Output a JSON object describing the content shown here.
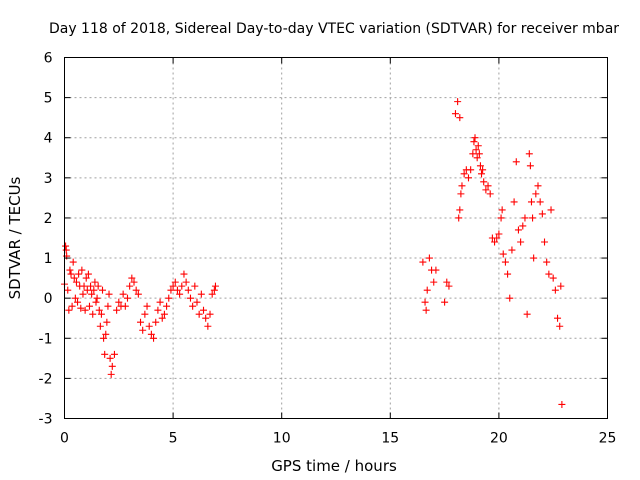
{
  "chart_data": {
    "type": "scatter",
    "title": "Day 118 of 2018, Sidereal Day-to-day VTEC variation (SDTVAR) for receiver mbar",
    "xlabel": "GPS time / hours",
    "ylabel": "SDTVAR / TECUs",
    "xlim": [
      0,
      25
    ],
    "ylim": [
      -3,
      6
    ],
    "xticks": [
      "0",
      "5",
      "10",
      "15",
      "20",
      "25"
    ],
    "yticks": [
      "-3",
      "-2",
      "-1",
      "0",
      "1",
      "2",
      "3",
      "4",
      "5",
      "6"
    ],
    "grid": true,
    "marker": "plus",
    "color": "#ff0000",
    "series": [
      {
        "name": "SDTVAR",
        "points": [
          [
            0.0,
            0.35
          ],
          [
            0.05,
            1.3
          ],
          [
            0.08,
            1.2
          ],
          [
            0.1,
            1.05
          ],
          [
            0.15,
            0.2
          ],
          [
            0.2,
            -0.3
          ],
          [
            0.25,
            0.7
          ],
          [
            0.3,
            0.6
          ],
          [
            0.35,
            -0.2
          ],
          [
            0.4,
            0.9
          ],
          [
            0.45,
            0.5
          ],
          [
            0.5,
            0.0
          ],
          [
            0.55,
            0.4
          ],
          [
            0.6,
            -0.1
          ],
          [
            0.65,
            0.6
          ],
          [
            0.7,
            0.3
          ],
          [
            0.75,
            -0.25
          ],
          [
            0.8,
            0.7
          ],
          [
            0.85,
            0.1
          ],
          [
            0.9,
            0.3
          ],
          [
            0.95,
            -0.3
          ],
          [
            1.0,
            0.5
          ],
          [
            1.05,
            0.2
          ],
          [
            1.1,
            0.6
          ],
          [
            1.15,
            -0.2
          ],
          [
            1.2,
            0.3
          ],
          [
            1.25,
            0.1
          ],
          [
            1.3,
            -0.4
          ],
          [
            1.35,
            0.2
          ],
          [
            1.4,
            0.4
          ],
          [
            1.45,
            -0.1
          ],
          [
            1.5,
            0.0
          ],
          [
            1.55,
            0.3
          ],
          [
            1.6,
            -0.3
          ],
          [
            1.65,
            -0.7
          ],
          [
            1.7,
            -0.4
          ],
          [
            1.75,
            0.2
          ],
          [
            1.8,
            -1.0
          ],
          [
            1.85,
            -1.4
          ],
          [
            1.9,
            -0.9
          ],
          [
            1.95,
            -0.6
          ],
          [
            2.0,
            -0.2
          ],
          [
            2.05,
            0.1
          ],
          [
            2.1,
            -1.5
          ],
          [
            2.15,
            -1.9
          ],
          [
            2.2,
            -1.7
          ],
          [
            2.3,
            -1.4
          ],
          [
            2.4,
            -0.3
          ],
          [
            2.5,
            -0.1
          ],
          [
            2.6,
            -0.2
          ],
          [
            2.7,
            0.1
          ],
          [
            2.8,
            -0.2
          ],
          [
            2.9,
            0.0
          ],
          [
            3.0,
            0.3
          ],
          [
            3.1,
            0.5
          ],
          [
            3.2,
            0.4
          ],
          [
            3.3,
            0.2
          ],
          [
            3.4,
            0.1
          ],
          [
            3.5,
            -0.6
          ],
          [
            3.6,
            -0.8
          ],
          [
            3.7,
            -0.4
          ],
          [
            3.8,
            -0.2
          ],
          [
            3.9,
            -0.7
          ],
          [
            4.0,
            -0.9
          ],
          [
            4.1,
            -1.0
          ],
          [
            4.2,
            -0.6
          ],
          [
            4.3,
            -0.3
          ],
          [
            4.4,
            -0.1
          ],
          [
            4.5,
            -0.5
          ],
          [
            4.6,
            -0.4
          ],
          [
            4.7,
            -0.2
          ],
          [
            4.8,
            0.0
          ],
          [
            4.9,
            0.2
          ],
          [
            5.0,
            0.3
          ],
          [
            5.1,
            0.4
          ],
          [
            5.2,
            0.2
          ],
          [
            5.3,
            0.1
          ],
          [
            5.4,
            0.3
          ],
          [
            5.5,
            0.6
          ],
          [
            5.6,
            0.4
          ],
          [
            5.7,
            0.2
          ],
          [
            5.8,
            0.0
          ],
          [
            5.9,
            -0.2
          ],
          [
            6.0,
            0.3
          ],
          [
            6.1,
            -0.1
          ],
          [
            6.2,
            -0.4
          ],
          [
            6.3,
            0.1
          ],
          [
            6.4,
            -0.3
          ],
          [
            6.5,
            -0.5
          ],
          [
            6.6,
            -0.7
          ],
          [
            6.7,
            -0.4
          ],
          [
            6.8,
            0.1
          ],
          [
            6.9,
            0.2
          ],
          [
            6.95,
            0.3
          ],
          [
            16.5,
            0.9
          ],
          [
            16.6,
            -0.1
          ],
          [
            16.65,
            -0.3
          ],
          [
            16.7,
            0.2
          ],
          [
            16.8,
            1.0
          ],
          [
            16.9,
            0.7
          ],
          [
            17.0,
            0.4
          ],
          [
            17.1,
            0.7
          ],
          [
            17.5,
            -0.1
          ],
          [
            17.6,
            0.4
          ],
          [
            17.7,
            0.3
          ],
          [
            18.0,
            4.6
          ],
          [
            18.1,
            4.9
          ],
          [
            18.2,
            4.5
          ],
          [
            18.15,
            2.0
          ],
          [
            18.2,
            2.2
          ],
          [
            18.25,
            2.6
          ],
          [
            18.3,
            2.8
          ],
          [
            18.4,
            3.1
          ],
          [
            18.5,
            3.2
          ],
          [
            18.6,
            3.0
          ],
          [
            18.7,
            3.2
          ],
          [
            18.8,
            3.6
          ],
          [
            18.85,
            3.9
          ],
          [
            18.9,
            4.0
          ],
          [
            18.95,
            3.7
          ],
          [
            19.0,
            3.5
          ],
          [
            19.05,
            3.8
          ],
          [
            19.1,
            3.6
          ],
          [
            19.15,
            3.3
          ],
          [
            19.2,
            3.1
          ],
          [
            19.25,
            3.2
          ],
          [
            19.3,
            2.9
          ],
          [
            19.4,
            2.7
          ],
          [
            19.5,
            2.8
          ],
          [
            19.6,
            2.6
          ],
          [
            19.7,
            1.5
          ],
          [
            19.8,
            1.4
          ],
          [
            19.9,
            1.5
          ],
          [
            20.0,
            1.6
          ],
          [
            20.1,
            2.0
          ],
          [
            20.15,
            2.2
          ],
          [
            20.2,
            1.1
          ],
          [
            20.3,
            0.9
          ],
          [
            20.4,
            0.6
          ],
          [
            20.5,
            0.0
          ],
          [
            20.6,
            1.2
          ],
          [
            20.7,
            2.4
          ],
          [
            20.8,
            3.4
          ],
          [
            20.9,
            1.7
          ],
          [
            21.0,
            1.4
          ],
          [
            21.1,
            1.8
          ],
          [
            21.2,
            2.0
          ],
          [
            21.3,
            -0.4
          ],
          [
            21.4,
            3.6
          ],
          [
            21.45,
            3.3
          ],
          [
            21.5,
            2.4
          ],
          [
            21.55,
            2.0
          ],
          [
            21.6,
            1.0
          ],
          [
            21.7,
            2.6
          ],
          [
            21.8,
            2.8
          ],
          [
            21.9,
            2.4
          ],
          [
            22.0,
            2.1
          ],
          [
            22.1,
            1.4
          ],
          [
            22.2,
            0.9
          ],
          [
            22.3,
            0.6
          ],
          [
            22.4,
            2.2
          ],
          [
            22.5,
            0.5
          ],
          [
            22.6,
            0.2
          ],
          [
            22.7,
            -0.5
          ],
          [
            22.8,
            -0.7
          ],
          [
            22.85,
            0.3
          ],
          [
            22.9,
            -2.65
          ]
        ]
      }
    ]
  }
}
